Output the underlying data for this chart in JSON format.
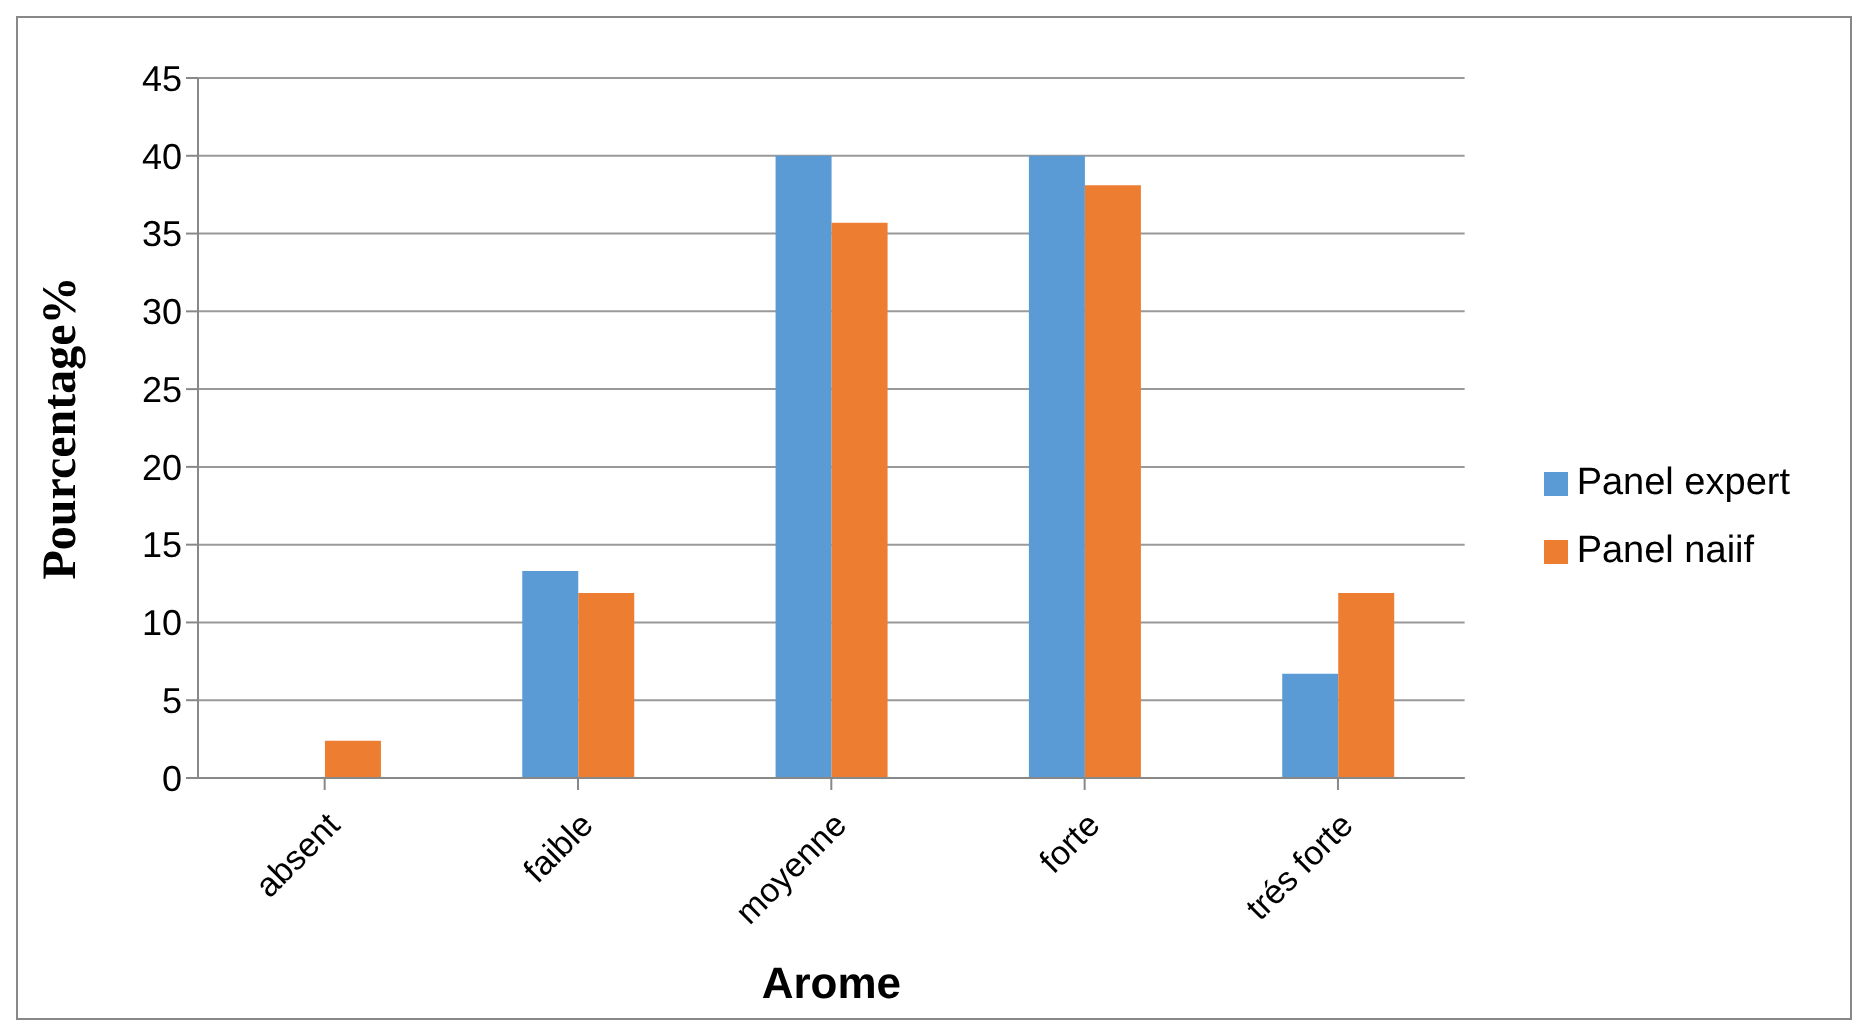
{
  "chart_data": {
    "type": "bar",
    "xlabel": "Arome",
    "ylabel": "Pourcentage%",
    "categories": [
      "absent",
      "faible",
      "moyenne",
      "forte",
      "trés forte"
    ],
    "series": [
      {
        "name": "Panel expert",
        "color": "#5b9bd5",
        "values": [
          0,
          13.3,
          40,
          40,
          6.7
        ]
      },
      {
        "name": "Panel naiif",
        "color": "#ed7d31",
        "values": [
          2.4,
          11.9,
          35.7,
          38.1,
          11.9
        ]
      }
    ],
    "ylim": [
      0,
      45
    ],
    "yticks": [
      0,
      5,
      10,
      15,
      20,
      25,
      30,
      35,
      40,
      45
    ],
    "grid": "y",
    "legend": "right"
  }
}
